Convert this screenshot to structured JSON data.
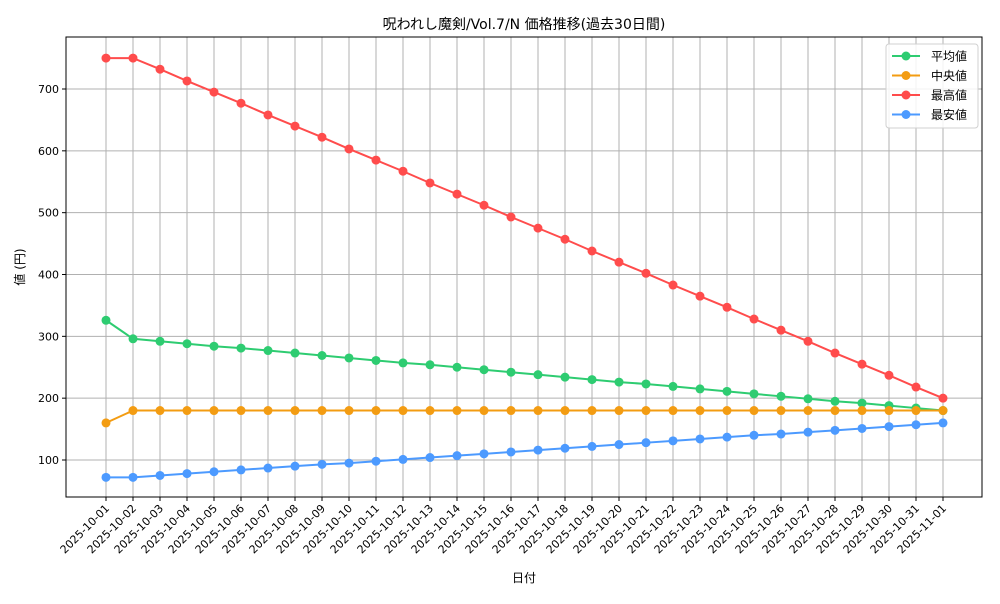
{
  "chart_data": {
    "type": "line",
    "title": "呪われし魔剣/Vol.7/N 価格推移(過去30日間)",
    "xlabel": "日付",
    "ylabel": "値 (円)",
    "ylim": [
      38,
      782
    ],
    "yticks": [
      100,
      200,
      300,
      400,
      500,
      600,
      700
    ],
    "grid": true,
    "legend_position": "upper right",
    "categories": [
      "2025-10-01",
      "2025-10-02",
      "2025-10-03",
      "2025-10-04",
      "2025-10-05",
      "2025-10-06",
      "2025-10-07",
      "2025-10-08",
      "2025-10-09",
      "2025-10-10",
      "2025-10-11",
      "2025-10-12",
      "2025-10-13",
      "2025-10-14",
      "2025-10-15",
      "2025-10-16",
      "2025-10-17",
      "2025-10-18",
      "2025-10-19",
      "2025-10-20",
      "2025-10-21",
      "2025-10-22",
      "2025-10-23",
      "2025-10-24",
      "2025-10-25",
      "2025-10-26",
      "2025-10-27",
      "2025-10-28",
      "2025-10-29",
      "2025-10-30",
      "2025-10-31",
      "2025-11-01"
    ],
    "series": [
      {
        "name": "平均値",
        "color": "#2ecc71",
        "values": [
          326,
          296,
          292,
          288,
          284,
          281,
          277,
          273,
          269,
          265,
          261,
          257,
          254,
          250,
          246,
          242,
          238,
          234,
          230,
          226,
          223,
          219,
          215,
          211,
          207,
          203,
          199,
          195,
          192,
          188,
          184,
          180
        ]
      },
      {
        "name": "中央値",
        "color": "#f39c12",
        "values": [
          160,
          180,
          180,
          180,
          180,
          180,
          180,
          180,
          180,
          180,
          180,
          180,
          180,
          180,
          180,
          180,
          180,
          180,
          180,
          180,
          180,
          180,
          180,
          180,
          180,
          180,
          180,
          180,
          180,
          180,
          180,
          180
        ]
      },
      {
        "name": "最高値",
        "color": "#ff4c4c",
        "values": [
          750,
          750,
          732,
          713,
          695,
          677,
          658,
          640,
          622,
          603,
          585,
          567,
          548,
          530,
          512,
          493,
          475,
          457,
          438,
          420,
          402,
          383,
          365,
          347,
          328,
          310,
          292,
          273,
          255,
          237,
          218,
          200
        ]
      },
      {
        "name": "最安値",
        "color": "#4c9aff",
        "values": [
          72,
          72,
          75,
          78,
          81,
          84,
          87,
          90,
          93,
          95,
          98,
          101,
          104,
          107,
          110,
          113,
          116,
          119,
          122,
          125,
          128,
          131,
          134,
          137,
          140,
          142,
          145,
          148,
          151,
          154,
          157,
          160
        ]
      }
    ]
  }
}
